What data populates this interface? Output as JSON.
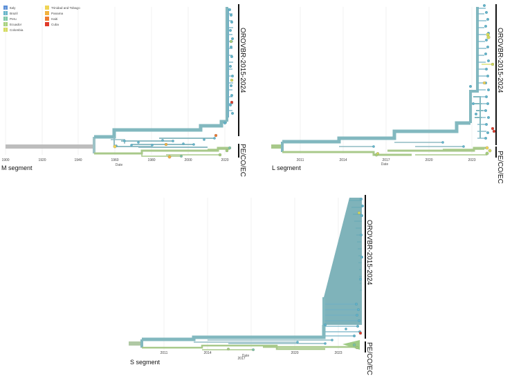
{
  "colors": {
    "trunk": "#82b8bf",
    "root": "#bdbdbd",
    "peco": "#a8c98a"
  },
  "legend": [
    {
      "label": "Italy",
      "color": "#5b8fd8"
    },
    {
      "label": "Brazil",
      "color": "#64b4ca"
    },
    {
      "label": "Peru",
      "color": "#7cc7a6"
    },
    {
      "label": "Ecuador",
      "color": "#a6d27a"
    },
    {
      "label": "Colombia",
      "color": "#d4dc5a"
    },
    {
      "label": "Trinidad and Tobago",
      "color": "#f0d455"
    },
    {
      "label": "Panama",
      "color": "#f2b23e"
    },
    {
      "label": "Haiti",
      "color": "#ee7a30"
    },
    {
      "label": "Cuba",
      "color": "#e03a2a"
    }
  ],
  "axis_title": "Date",
  "panels": [
    {
      "id": "M",
      "segment_label": "M segment",
      "ticks": [
        "1900",
        "1920",
        "1940",
        "1960",
        "1980",
        "2000",
        "2020"
      ],
      "clades": [
        {
          "label": "OROVBR-2015-2024"
        },
        {
          "label": "PE/CO/EC"
        }
      ]
    },
    {
      "id": "L",
      "segment_label": "L segment",
      "ticks": [
        "2011",
        "2014",
        "2017",
        "2020",
        "2023"
      ],
      "clades": [
        {
          "label": "OROVBR-2015-2024"
        },
        {
          "label": "PE/CO/EC"
        }
      ]
    },
    {
      "id": "S",
      "segment_label": "S segment",
      "ticks": [
        "2011",
        "2014",
        "2017",
        "2020",
        "2023"
      ],
      "clades": [
        {
          "label": "OROVBR-2015-2024"
        },
        {
          "label": "PE/CO/EC"
        }
      ]
    }
  ]
}
